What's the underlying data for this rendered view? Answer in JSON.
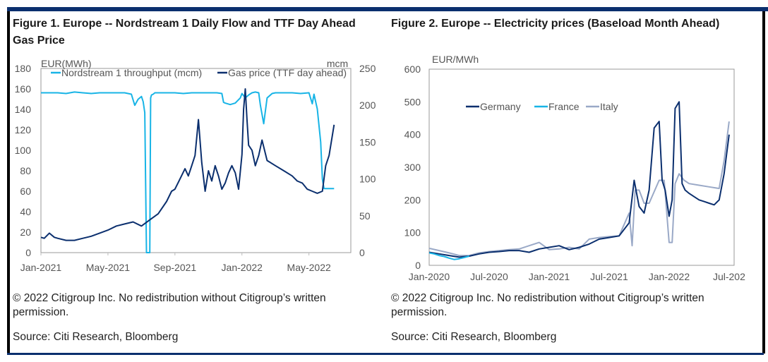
{
  "colors": {
    "frame_navy": "#0b2f6e",
    "gas_price": "#0b2f6e",
    "nordstream": "#18b4e6",
    "germany": "#0b2f6e",
    "france": "#18b4e6",
    "italy": "#9aa9c7",
    "axis_text": "#555555"
  },
  "figures": [
    {
      "title": "Figure 1. Europe -- Nordstream 1 Daily Flow and TTF Day Ahead Gas Price",
      "copyright": "© 2022 Citigroup Inc. No redistribution without Citigroup’s written permission.",
      "source": "Source: Citi Research, Bloomberg"
    },
    {
      "title": "Figure 2. Europe -- Electricity prices (Baseload Month Ahead)",
      "copyright": "© 2022 Citigroup Inc. No redistribution without Citigroup’s written permission.",
      "source": "Source: Citi Research, Bloomberg"
    }
  ],
  "chart_data": [
    {
      "type": "line",
      "title": "Figure 1. Europe -- Nordstream 1 Daily Flow and TTF Day Ahead Gas Price",
      "ylabel": "EUR(MWh)",
      "y2label": "mcm",
      "ylim": [
        0,
        180
      ],
      "y2lim": [
        0,
        250
      ],
      "yticks": [
        "0",
        "20",
        "40",
        "60",
        "80",
        "100",
        "120",
        "140",
        "160",
        "180"
      ],
      "y2ticks": [
        "0",
        "50",
        "100",
        "150",
        "200",
        "250"
      ],
      "xlim": [
        "2021-01-01",
        "2022-07-15"
      ],
      "xticks": [
        "Jan-2021",
        "May-2021",
        "Sep-2021",
        "Jan-2022",
        "May-2022"
      ],
      "grid": false,
      "legend": "top",
      "series": [
        {
          "name": "Nordstream 1 throughput (mcm)",
          "axis": "right",
          "x": [
            0,
            0.5,
            1.0,
            1.5,
            2.0,
            2.5,
            3.0,
            3.5,
            4.0,
            4.5,
            5.0,
            5.4,
            5.6,
            5.8,
            6.0,
            6.1,
            6.2,
            6.3,
            6.35,
            6.4,
            6.45,
            6.5,
            6.55,
            6.6,
            6.7,
            6.8,
            7.0,
            7.5,
            8.0,
            8.5,
            9.0,
            9.5,
            10.0,
            10.5,
            10.8,
            10.9,
            11.0,
            11.3,
            11.6,
            11.9,
            12.0,
            12.2,
            12.4,
            12.6,
            12.8,
            13.0,
            13.1,
            13.3,
            13.5,
            13.8,
            14.0,
            14.5,
            15.0,
            15.5,
            16.0,
            16.2,
            16.3,
            16.5,
            16.7,
            16.8,
            16.9,
            17.0,
            17.5
          ],
          "values": [
            217,
            217,
            217,
            216,
            218,
            217,
            216,
            217,
            217,
            217,
            217,
            215,
            200,
            208,
            212,
            205,
            190,
            0,
            0,
            0,
            0,
            0,
            210,
            214,
            215,
            217,
            217,
            217,
            217,
            216,
            217,
            217,
            217,
            217,
            216,
            204,
            203,
            201,
            203,
            210,
            216,
            210,
            214,
            217,
            218,
            217,
            200,
            175,
            210,
            216,
            217,
            217,
            217,
            216,
            217,
            202,
            215,
            195,
            150,
            100,
            87,
            87,
            87
          ]
        },
        {
          "name": "Gas price (TTF day ahead)",
          "axis": "left",
          "x": [
            0,
            0.2,
            0.5,
            0.8,
            1.0,
            1.5,
            2.0,
            2.5,
            3.0,
            3.5,
            4.0,
            4.5,
            5.0,
            5.5,
            6.0,
            6.5,
            7.0,
            7.5,
            7.8,
            8.0,
            8.3,
            8.6,
            8.8,
            9.0,
            9.2,
            9.4,
            9.6,
            9.8,
            10.0,
            10.2,
            10.4,
            10.6,
            10.8,
            11.0,
            11.2,
            11.4,
            11.6,
            11.8,
            12.0,
            12.1,
            12.2,
            12.3,
            12.4,
            12.6,
            12.8,
            13.0,
            13.2,
            13.5,
            14.0,
            14.5,
            15.0,
            15.3,
            15.6,
            15.9,
            16.2,
            16.5,
            16.8,
            17.0,
            17.2,
            17.5
          ],
          "values": [
            15,
            14,
            19,
            15,
            14,
            12,
            12,
            14,
            16,
            19,
            22,
            26,
            28,
            30,
            26,
            32,
            38,
            50,
            60,
            62,
            72,
            82,
            75,
            85,
            95,
            130,
            88,
            60,
            80,
            70,
            85,
            75,
            62,
            68,
            78,
            85,
            78,
            62,
            96,
            140,
            160,
            130,
            105,
            100,
            85,
            95,
            110,
            90,
            85,
            80,
            75,
            70,
            68,
            62,
            60,
            58,
            60,
            85,
            95,
            125
          ]
        }
      ],
      "x_units": "months since Jan-2021"
    },
    {
      "type": "line",
      "title": "Figure 2. Europe -- Electricity prices (Baseload Month Ahead)",
      "ylabel": "EUR/MWh",
      "ylim": [
        0,
        600
      ],
      "yticks": [
        "0",
        "100",
        "200",
        "300",
        "400",
        "500",
        "600"
      ],
      "xlim": [
        "2020-01-01",
        "2022-07-01"
      ],
      "xticks": [
        "Jan-2020",
        "Jul-2020",
        "Jan-2021",
        "Jul-2021",
        "Jan-2022",
        "Jul-202"
      ],
      "grid": false,
      "legend": "upper-left",
      "series": [
        {
          "name": "Germany",
          "x": [
            0,
            1,
            2,
            3,
            4,
            5,
            6,
            7,
            8,
            9,
            10,
            11,
            12,
            13,
            14,
            15,
            16,
            17,
            18,
            19,
            20,
            20.5,
            21,
            21.5,
            22,
            22.5,
            23,
            23.3,
            23.6,
            24,
            24.3,
            24.6,
            25,
            25.3,
            25.6,
            26,
            26.5,
            27,
            27.5,
            28,
            28.5,
            29,
            29.5,
            30
          ],
          "values": [
            40,
            35,
            30,
            25,
            28,
            35,
            40,
            42,
            45,
            45,
            40,
            50,
            55,
            60,
            48,
            55,
            65,
            80,
            85,
            90,
            130,
            260,
            180,
            160,
            230,
            420,
            440,
            260,
            230,
            150,
            200,
            480,
            500,
            250,
            230,
            220,
            210,
            200,
            195,
            190,
            185,
            200,
            280,
            400
          ]
        },
        {
          "name": "France",
          "x": [
            0,
            0.5,
            1,
            1.5,
            2,
            2.5,
            3,
            3.5,
            4
          ],
          "values": [
            38,
            35,
            30,
            27,
            22,
            18,
            20,
            24,
            28
          ]
        },
        {
          "name": "Italy",
          "x": [
            0,
            1,
            2,
            3,
            4,
            5,
            6,
            7,
            8,
            9,
            10,
            11,
            12,
            13,
            14,
            15,
            16,
            17,
            18,
            19,
            20,
            20.3,
            20.6,
            21,
            21.5,
            22,
            23,
            23.5,
            24,
            24.3,
            24.6,
            25,
            25.5,
            26,
            27,
            28,
            29,
            29.5,
            30
          ],
          "values": [
            52,
            45,
            38,
            30,
            30,
            38,
            42,
            45,
            48,
            50,
            60,
            70,
            48,
            50,
            55,
            50,
            80,
            85,
            88,
            90,
            160,
            60,
            230,
            230,
            190,
            190,
            260,
            260,
            70,
            70,
            250,
            280,
            260,
            250,
            245,
            240,
            235,
            320,
            440
          ]
        }
      ],
      "x_units": "months since Jan-2020"
    }
  ]
}
